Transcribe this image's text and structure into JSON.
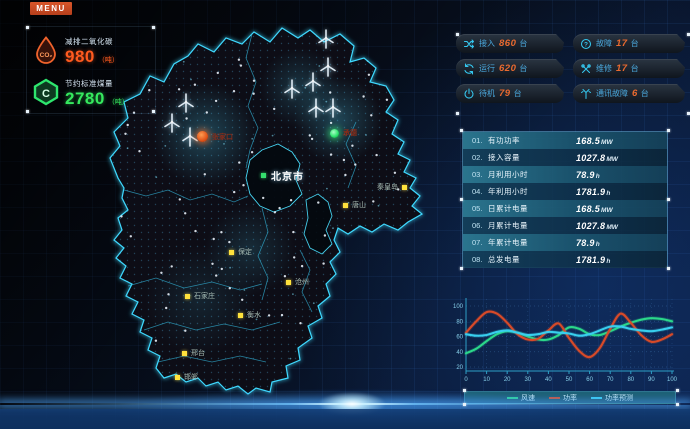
{
  "menu": {
    "label": "MENU"
  },
  "kpi": {
    "co2": {
      "icon": "co2-drop-icon",
      "label": "减排二氧化碳",
      "value": "980",
      "unit": "（吨）",
      "color": "#ff5a1f"
    },
    "coal": {
      "icon": "coal-hexagon-icon",
      "label": "节约标准煤量",
      "value": "2780",
      "unit": "（吨）",
      "color": "#35e95e"
    }
  },
  "device_stats": {
    "items": [
      {
        "icon": "connect-icon",
        "label": "接入",
        "value": "860",
        "unit": "台"
      },
      {
        "icon": "fault-icon",
        "label": "故障",
        "value": "17",
        "unit": "台"
      },
      {
        "icon": "running-icon",
        "label": "运行",
        "value": "620",
        "unit": "台"
      },
      {
        "icon": "maintenance-icon",
        "label": "维修",
        "value": "17",
        "unit": "台"
      },
      {
        "icon": "standby-icon",
        "label": "待机",
        "value": "79",
        "unit": "台"
      },
      {
        "icon": "comm-fault-icon",
        "label": "通讯故障",
        "value": "6",
        "unit": "台"
      }
    ]
  },
  "metrics": {
    "rows": [
      {
        "index": "01.",
        "label": "有功功率",
        "value": "168.5",
        "unit": "MW"
      },
      {
        "index": "02.",
        "label": "接入容量",
        "value": "1027.8",
        "unit": "MW"
      },
      {
        "index": "03.",
        "label": "月利用小时",
        "value": "78.9",
        "unit": "h"
      },
      {
        "index": "04.",
        "label": "年利用小时",
        "value": "1781.9",
        "unit": "h"
      },
      {
        "index": "05.",
        "label": "日累计电量",
        "value": "168.5",
        "unit": "MW"
      },
      {
        "index": "06.",
        "label": "月累计电量",
        "value": "1027.8",
        "unit": "MW"
      },
      {
        "index": "07.",
        "label": "年累计电量",
        "value": "78.9",
        "unit": "h"
      },
      {
        "index": "08.",
        "label": "总发电量",
        "value": "1781.9",
        "unit": "h"
      }
    ]
  },
  "map": {
    "cities": [
      {
        "name": "张家口",
        "marker": "orange-dot"
      },
      {
        "name": "承德",
        "marker": "green-dot"
      },
      {
        "name": "北京市",
        "marker": "green-square"
      },
      {
        "name": "秦皇岛",
        "marker": "yellow-square"
      },
      {
        "name": "唐山",
        "marker": "yellow-square"
      },
      {
        "name": "保定",
        "marker": "yellow-square"
      },
      {
        "name": "沧州",
        "marker": "yellow-square"
      },
      {
        "name": "石家庄",
        "marker": "yellow-square"
      },
      {
        "name": "衡水",
        "marker": "yellow-square"
      },
      {
        "name": "邢台",
        "marker": "yellow-square"
      },
      {
        "name": "邯郸",
        "marker": "yellow-square"
      }
    ],
    "turbine_icon": "wind-turbine-icon",
    "turbines": [
      [
        186,
        102
      ],
      [
        172,
        122
      ],
      [
        190,
        136
      ],
      [
        292,
        88
      ],
      [
        313,
        81
      ],
      [
        328,
        66
      ],
      [
        316,
        107
      ],
      [
        333,
        107
      ],
      [
        326,
        38
      ]
    ]
  },
  "chart_data": {
    "type": "line",
    "x": [
      0,
      5,
      10,
      15,
      20,
      25,
      30,
      35,
      40,
      45,
      50,
      55,
      60,
      65,
      70,
      75,
      80,
      85,
      90,
      95,
      100
    ],
    "series": [
      {
        "name": "风速",
        "color": "#2bd88a",
        "values": [
          38,
          44,
          54,
          63,
          67,
          65,
          60,
          56,
          56,
          62,
          72,
          70,
          63,
          62,
          67,
          73,
          78,
          82,
          84,
          83,
          80
        ]
      },
      {
        "name": "功率",
        "color": "#d84a28",
        "values": [
          65,
          80,
          92,
          90,
          78,
          63,
          56,
          57,
          68,
          77,
          58,
          41,
          33,
          45,
          70,
          90,
          78,
          62,
          53,
          56,
          63
        ]
      },
      {
        "name": "功率预测",
        "color": "#38cfee",
        "values": [
          63,
          61,
          62,
          66,
          68,
          65,
          62,
          63,
          66,
          65,
          64,
          61,
          63,
          68,
          73,
          73,
          70,
          68,
          67,
          69,
          72
        ]
      }
    ],
    "title": "",
    "xlabel": "",
    "ylabel": "",
    "xticks": [
      0,
      10,
      20,
      30,
      40,
      50,
      60,
      70,
      80,
      90,
      100
    ],
    "yticks": [
      20,
      40,
      60,
      80,
      100
    ],
    "ylim": [
      14,
      104
    ],
    "grid": "dotted",
    "legend_position": "bottom"
  }
}
